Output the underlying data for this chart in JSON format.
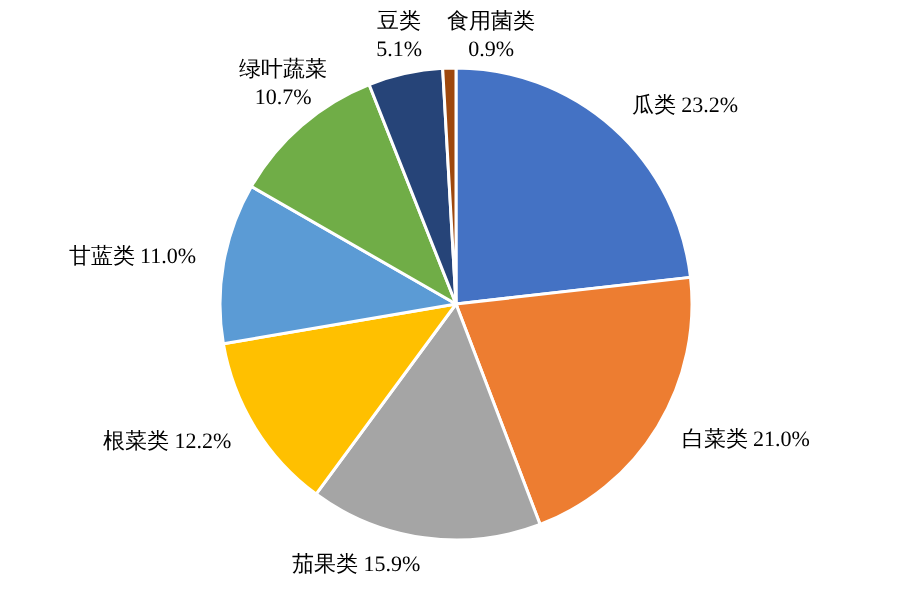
{
  "chart_data": {
    "type": "pie",
    "categories": [
      "瓜类",
      "白菜类",
      "茄果类",
      "根菜类",
      "甘蓝类",
      "绿叶蔬菜",
      "豆类",
      "食用菌类"
    ],
    "values": [
      23.2,
      21.0,
      15.9,
      12.2,
      11.0,
      10.7,
      5.1,
      0.9
    ],
    "value_labels": [
      "23.2%",
      "21.0%",
      "15.9%",
      "12.2%",
      "11.0%",
      "10.7%",
      "5.1%",
      "0.9%"
    ],
    "colors": [
      "#4472c4",
      "#ed7d31",
      "#a5a5a5",
      "#ffc000",
      "#5b9bd5",
      "#70ad47",
      "#264478",
      "#9e480e"
    ]
  }
}
